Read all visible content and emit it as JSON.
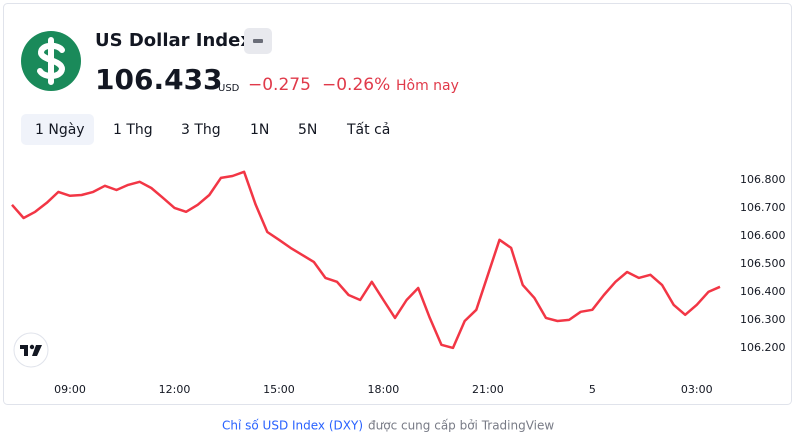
{
  "header": {
    "title": "US Dollar Index",
    "price": "106.433",
    "currency": "USD",
    "change": "−0.275",
    "change_percent": "−0.26%",
    "period": "Hôm nay"
  },
  "tabs": [
    "1 Ngày",
    "1 Thg",
    "3 Thg",
    "1N",
    "5N",
    "Tất cả"
  ],
  "footer": {
    "link": "Chỉ số USD Index (DXY)",
    "text": "được cung cấp bởi TradingView"
  },
  "chart_data": {
    "type": "line",
    "color": "#f23645",
    "categories": [
      null,
      null,
      null,
      null,
      null,
      "09:00",
      null,
      null,
      null,
      null,
      null,
      null,
      null,
      null,
      "12:00",
      null,
      null,
      null,
      null,
      null,
      null,
      null,
      null,
      "15:00",
      null,
      null,
      null,
      null,
      null,
      null,
      null,
      null,
      "18:00",
      null,
      null,
      null,
      null,
      null,
      null,
      null,
      null,
      "21:00",
      null,
      null,
      null,
      null,
      null,
      null,
      null,
      null,
      "5",
      null,
      null,
      null,
      null,
      null,
      null,
      null,
      null,
      "03:00",
      null,
      null
    ],
    "values": [
      106.711,
      106.664,
      106.686,
      106.718,
      106.757,
      106.743,
      106.746,
      106.757,
      106.779,
      106.764,
      106.782,
      106.793,
      106.771,
      106.736,
      106.7,
      106.686,
      106.711,
      106.746,
      106.807,
      106.814,
      106.829,
      106.711,
      106.614,
      106.586,
      106.557,
      106.532,
      106.507,
      106.45,
      106.436,
      106.389,
      106.371,
      106.436,
      106.371,
      106.307,
      106.371,
      106.414,
      106.307,
      106.211,
      106.2,
      106.296,
      106.336,
      106.461,
      106.586,
      106.557,
      106.425,
      106.379,
      106.307,
      106.296,
      106.3,
      106.329,
      106.336,
      106.389,
      106.436,
      106.471,
      106.45,
      106.461,
      106.425,
      106.354,
      106.318,
      106.354,
      106.4,
      106.418
    ],
    "ylim": [
      106.121,
      106.871
    ],
    "yticks": [
      {
        "value": 106.2,
        "label": "106.200"
      },
      {
        "value": 106.3,
        "label": "106.300"
      },
      {
        "value": 106.4,
        "label": "106.400"
      },
      {
        "value": 106.5,
        "label": "106.500"
      },
      {
        "value": 106.6,
        "label": "106.600"
      },
      {
        "value": 106.7,
        "label": "106.700"
      },
      {
        "value": 106.8,
        "label": "106.800"
      }
    ]
  }
}
